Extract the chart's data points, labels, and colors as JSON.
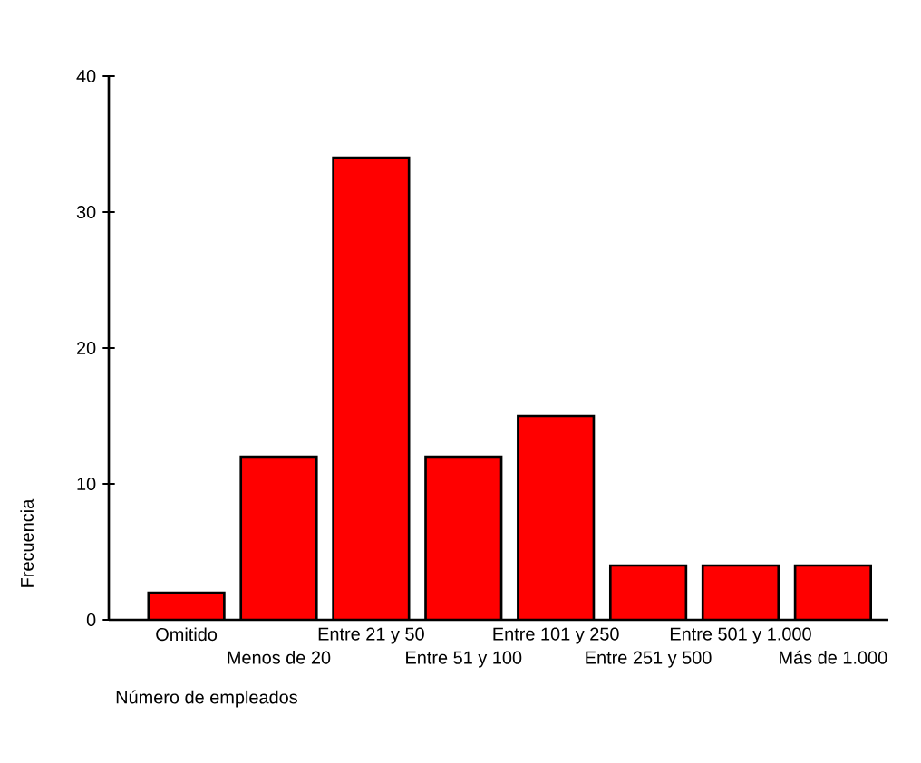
{
  "chart_data": {
    "type": "bar",
    "categories": [
      "Omitido",
      "Menos de 20",
      "Entre 21 y 50",
      "Entre 51 y 100",
      "Entre 101 y 250",
      "Entre 251 y 500",
      "Entre 501 y 1.000",
      "Más de 1.000"
    ],
    "values": [
      2,
      12,
      34,
      12,
      15,
      4,
      4,
      4
    ],
    "color": "#ff0000",
    "xlabel": "Número de empleados",
    "ylabel": "Frecuencia",
    "ylim": [
      0,
      40
    ],
    "yticks": [
      0,
      10,
      20,
      30,
      40
    ]
  }
}
